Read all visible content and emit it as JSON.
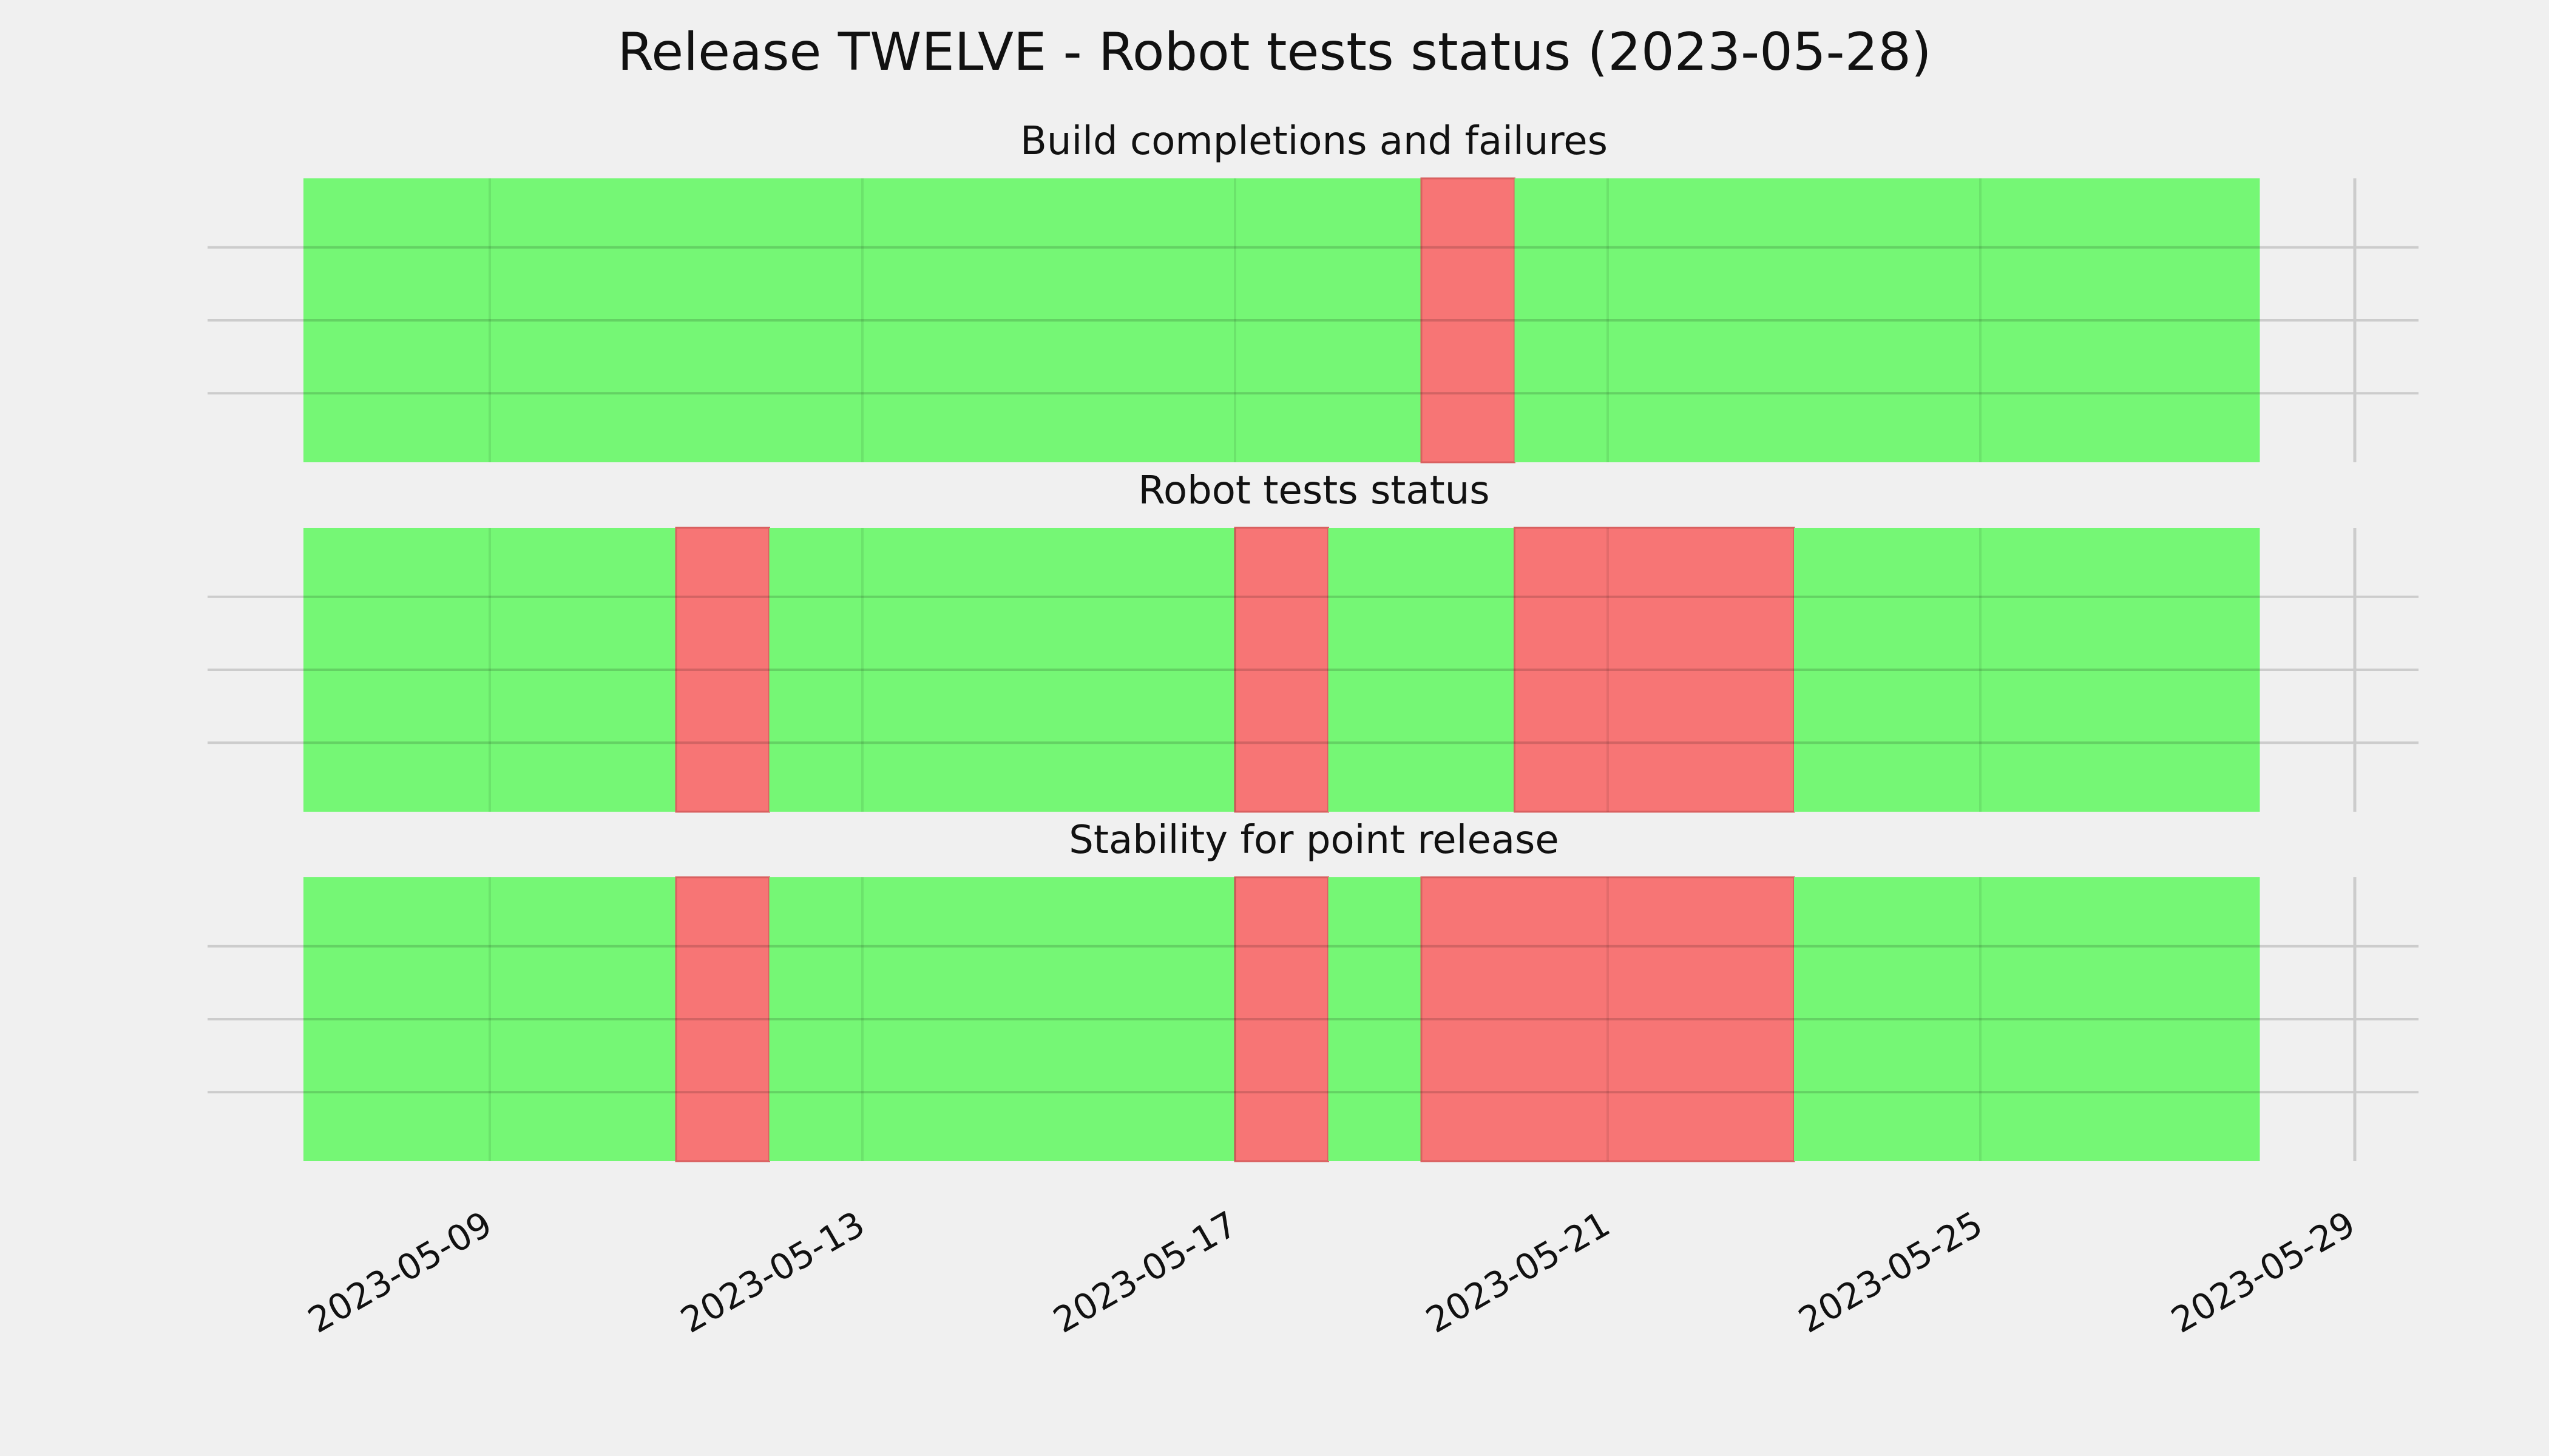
{
  "chart_data": {
    "type": "timeline",
    "title": "Release TWELVE - Robot tests status (2023-05-28)",
    "x_start": "2023-05-07",
    "x_end": "2023-05-29",
    "x_axis": {
      "ticks": [
        "2023-05-09",
        "2023-05-13",
        "2023-05-17",
        "2023-05-21",
        "2023-05-25",
        "2023-05-29"
      ],
      "label_rotation_deg": 30
    },
    "colors": {
      "pass": "#75f775",
      "fail": "#f77575",
      "background": "#f0f0f0",
      "grid": "#cccccc"
    },
    "grid": true,
    "panels": [
      {
        "title": "Build completions and failures",
        "segments": [
          {
            "start": "2023-05-07",
            "end": "2023-05-19",
            "status": "pass"
          },
          {
            "start": "2023-05-19",
            "end": "2023-05-20",
            "status": "fail"
          },
          {
            "start": "2023-05-20",
            "end": "2023-05-28",
            "status": "pass"
          }
        ]
      },
      {
        "title": "Robot tests status",
        "segments": [
          {
            "start": "2023-05-07",
            "end": "2023-05-11",
            "status": "pass"
          },
          {
            "start": "2023-05-11",
            "end": "2023-05-12",
            "status": "fail"
          },
          {
            "start": "2023-05-12",
            "end": "2023-05-17",
            "status": "pass"
          },
          {
            "start": "2023-05-17",
            "end": "2023-05-18",
            "status": "fail"
          },
          {
            "start": "2023-05-18",
            "end": "2023-05-20",
            "status": "pass"
          },
          {
            "start": "2023-05-20",
            "end": "2023-05-23",
            "status": "fail"
          },
          {
            "start": "2023-05-23",
            "end": "2023-05-28",
            "status": "pass"
          }
        ]
      },
      {
        "title": "Stability for point release",
        "segments": [
          {
            "start": "2023-05-07",
            "end": "2023-05-11",
            "status": "pass"
          },
          {
            "start": "2023-05-11",
            "end": "2023-05-12",
            "status": "fail"
          },
          {
            "start": "2023-05-12",
            "end": "2023-05-17",
            "status": "pass"
          },
          {
            "start": "2023-05-17",
            "end": "2023-05-18",
            "status": "fail"
          },
          {
            "start": "2023-05-18",
            "end": "2023-05-19",
            "status": "pass"
          },
          {
            "start": "2023-05-19",
            "end": "2023-05-23",
            "status": "fail"
          },
          {
            "start": "2023-05-23",
            "end": "2023-05-28",
            "status": "pass"
          }
        ]
      }
    ]
  }
}
